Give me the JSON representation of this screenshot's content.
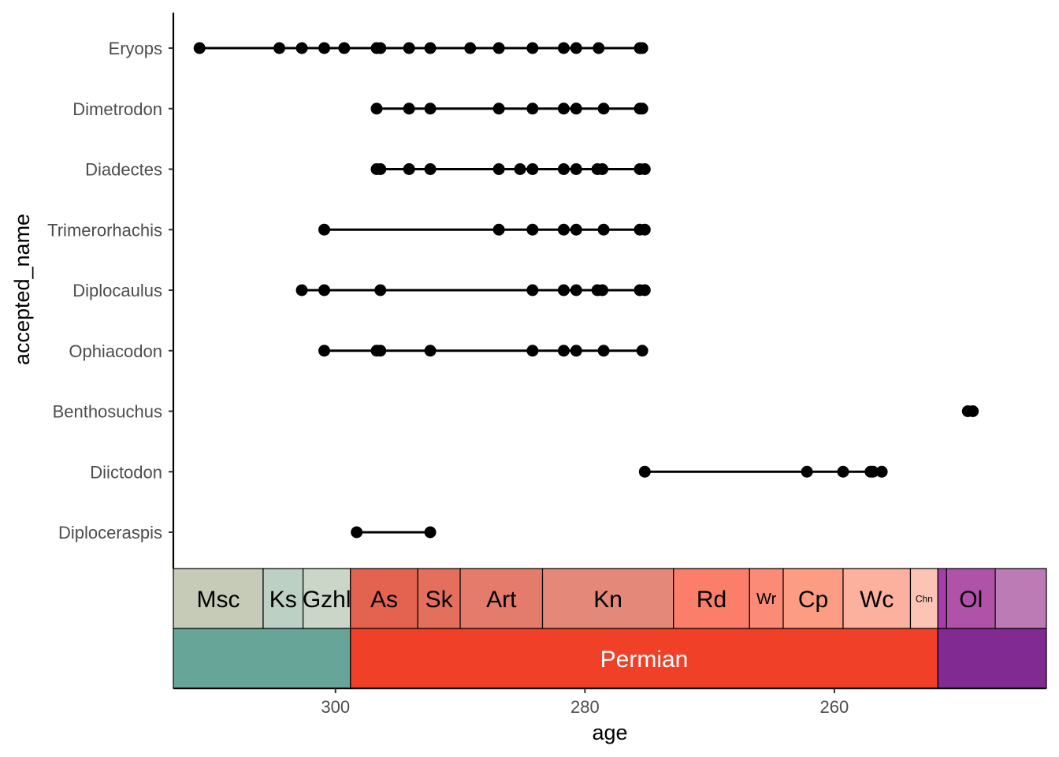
{
  "chart_data": {
    "type": "scatter",
    "subtype": "range-dot-plot with geologic time scale",
    "xlabel": "age",
    "ylabel": "accepted_name",
    "xlim": [
      313,
      243
    ],
    "x_reversed": true,
    "x_ticks": [
      300,
      280,
      260
    ],
    "x_tick_labels": [
      "300",
      "280",
      "260"
    ],
    "grid": false,
    "legend": "none",
    "point_color": "#000000",
    "taxa": [
      {
        "name": "Eryops",
        "ages": [
          310.9,
          304.5,
          302.7,
          300.9,
          299.3,
          296.7,
          296.4,
          294.1,
          292.4,
          289.2,
          286.9,
          284.2,
          281.7,
          280.7,
          278.9,
          275.6,
          275.4
        ]
      },
      {
        "name": "Dimetrodon",
        "ages": [
          296.7,
          294.1,
          292.4,
          286.9,
          284.2,
          281.7,
          280.7,
          278.5,
          275.6,
          275.4
        ]
      },
      {
        "name": "Diadectes",
        "ages": [
          296.7,
          296.4,
          294.1,
          292.4,
          286.9,
          285.2,
          284.2,
          281.7,
          280.7,
          279.0,
          278.6,
          275.6,
          275.2
        ]
      },
      {
        "name": "Trimerorhachis",
        "ages": [
          300.9,
          286.9,
          284.2,
          281.7,
          280.7,
          278.5,
          275.6,
          275.2
        ]
      },
      {
        "name": "Diplocaulus",
        "ages": [
          302.7,
          300.9,
          296.4,
          284.2,
          281.7,
          280.7,
          279.0,
          278.6,
          275.6,
          275.2
        ]
      },
      {
        "name": "Ophiacodon",
        "ages": [
          300.9,
          296.7,
          296.4,
          292.4,
          284.2,
          281.7,
          280.7,
          278.5,
          275.4
        ]
      },
      {
        "name": "Benthosuchus",
        "ages": [
          249.3,
          248.9
        ]
      },
      {
        "name": "Diictodon",
        "ages": [
          275.2,
          262.2,
          259.3,
          257.1,
          256.9,
          256.2
        ]
      },
      {
        "name": "Diploceraspis",
        "ages": [
          298.3,
          292.4
        ]
      }
    ],
    "stages": [
      {
        "label": "Msc",
        "start": 313,
        "end": 305.8,
        "color": "#C6CBB8",
        "font": 30
      },
      {
        "label": "Ks",
        "start": 305.8,
        "end": 302.6,
        "color": "#BDD0C4",
        "font": 30
      },
      {
        "label": "Gzhl",
        "start": 302.6,
        "end": 298.8,
        "color": "#CBD6C9",
        "font": 30
      },
      {
        "label": "As",
        "start": 298.8,
        "end": 293.4,
        "color": "#E46350",
        "font": 30
      },
      {
        "label": "Sk",
        "start": 293.4,
        "end": 290.0,
        "color": "#E46F5D",
        "font": 30
      },
      {
        "label": "Art",
        "start": 290.0,
        "end": 283.4,
        "color": "#E57C6B",
        "font": 30
      },
      {
        "label": "Kn",
        "start": 283.4,
        "end": 272.9,
        "color": "#E48979",
        "font": 30
      },
      {
        "label": "Rd",
        "start": 272.9,
        "end": 266.8,
        "color": "#FA7E6A",
        "font": 30
      },
      {
        "label": "Wr",
        "start": 266.8,
        "end": 264.1,
        "color": "#FB8A76",
        "font": 20
      },
      {
        "label": "Cp",
        "start": 264.1,
        "end": 259.3,
        "color": "#FC9C83",
        "font": 30
      },
      {
        "label": "Wc",
        "start": 259.3,
        "end": 253.9,
        "color": "#FBB19D",
        "font": 30
      },
      {
        "label": "Chn",
        "start": 253.9,
        "end": 251.7,
        "color": "#FBC4B5",
        "font": 12
      },
      {
        "label": "",
        "start": 251.7,
        "end": 251.0,
        "color": "#A53DAA",
        "font": 12
      },
      {
        "label": "Ol",
        "start": 251.0,
        "end": 247.1,
        "color": "#B152A9",
        "font": 30
      },
      {
        "label": "",
        "start": 247.1,
        "end": 243,
        "color": "#BD7BB6",
        "font": 12
      }
    ],
    "periods": [
      {
        "label": "",
        "start": 313,
        "end": 298.8,
        "color": "#67A599"
      },
      {
        "label": "Permian",
        "start": 298.8,
        "end": 251.7,
        "color": "#F04028"
      },
      {
        "label": "",
        "start": 251.7,
        "end": 243,
        "color": "#812B92"
      }
    ]
  }
}
